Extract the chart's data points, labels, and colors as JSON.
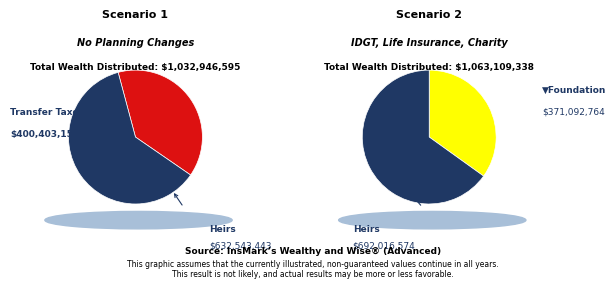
{
  "scenario1": {
    "title_line1": "Scenario 1",
    "title_line2": "No Planning Changes",
    "title_line3": "Total Wealth Distributed: $1,032,946,595",
    "slices": [
      400403152,
      632543443
    ],
    "colors": [
      "#dd1111",
      "#1f3864"
    ],
    "shadow_color": "#a8bfd8",
    "label_taxes": "Transfer Taxes▼",
    "amount_taxes": "$400,403,152",
    "label_heirs": "Heirs",
    "amount_heirs": "$632,543,443"
  },
  "scenario2": {
    "title_line1": "Scenario 2",
    "title_line2": "IDGT, Life Insurance, Charity",
    "title_line3": "Total Wealth Distributed: $1,063,109,338",
    "slices": [
      371092764,
      692016574
    ],
    "colors": [
      "#ffff00",
      "#1f3864"
    ],
    "shadow_color": "#a8bfd8",
    "label_foundation": "▼Foundation",
    "amount_foundation": "$371,092,764",
    "label_heirs": "Heirs",
    "amount_heirs": "$692,016,574"
  },
  "footer_line1": "Source: InsMark’s Wealthy and Wise® (Advanced)",
  "footer_line2": "This graphic assumes that the currently illustrated, non-guaranteed values continue in all years.",
  "footer_line3": "This result is not likely, and actual results may be more or less favorable.",
  "background_color": "#ffffff",
  "dark_blue": "#1f3864",
  "red": "#dd1111",
  "text_color": "#000000"
}
